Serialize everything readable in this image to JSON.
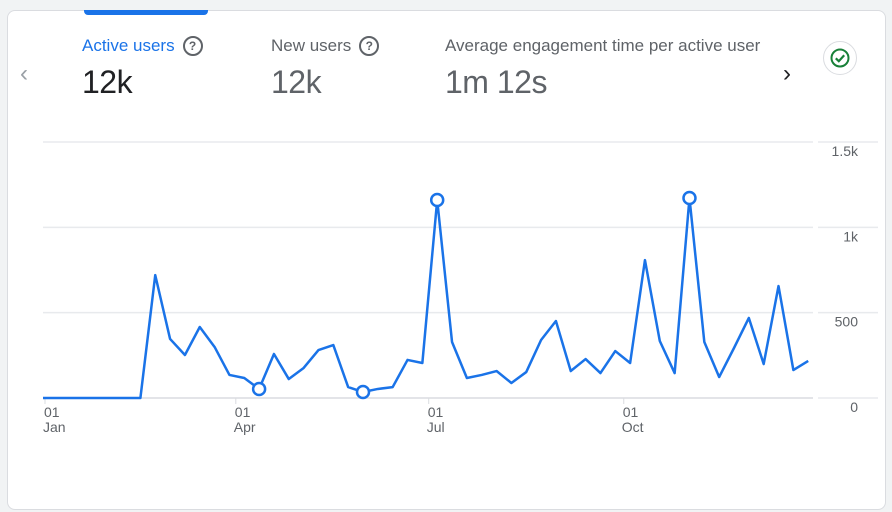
{
  "metrics": [
    {
      "label": "Active users",
      "value": "12k",
      "active": true,
      "help": "?"
    },
    {
      "label": "New users",
      "value": "12k",
      "active": false,
      "help": "?"
    },
    {
      "label": "Average engagement time per active user",
      "value": "1m 12s",
      "active": false
    }
  ],
  "nav": {
    "prev": "‹",
    "next": "›"
  },
  "status_icon": "check-circle-icon",
  "colors": {
    "accent": "#1a73e8",
    "check": "#188038"
  },
  "chart_data": {
    "type": "line",
    "series": [
      {
        "name": "Active users",
        "start_day": 3,
        "step_days": 7,
        "values": [
          0,
          0,
          0,
          0,
          0,
          0,
          0,
          720,
          346,
          252,
          416,
          299,
          135,
          117,
          53,
          258,
          111,
          176,
          281,
          310,
          64,
          35,
          53,
          64,
          223,
          205,
          1160,
          328,
          117,
          135,
          158,
          88,
          152,
          340,
          451,
          158,
          228,
          146,
          275,
          205,
          808,
          334,
          146,
          1172,
          328,
          123,
          293,
          469,
          199,
          656,
          164,
          217
        ]
      }
    ],
    "marked_indices": [
      14,
      21,
      26,
      43
    ],
    "ylim": [
      0,
      1500
    ],
    "y_ticks": [
      {
        "v": 0,
        "label": "0"
      },
      {
        "v": 500,
        "label": "500"
      },
      {
        "v": 1000,
        "label": "1k"
      },
      {
        "v": 1500,
        "label": "1.5k"
      }
    ],
    "x_ticks": [
      {
        "day": 0,
        "day_label": "01",
        "month": "Jan"
      },
      {
        "day": 90,
        "day_label": "01",
        "month": "Apr"
      },
      {
        "day": 181,
        "day_label": "01",
        "month": "Jul"
      },
      {
        "day": 273,
        "day_label": "01",
        "month": "Oct"
      }
    ],
    "grid": true
  }
}
